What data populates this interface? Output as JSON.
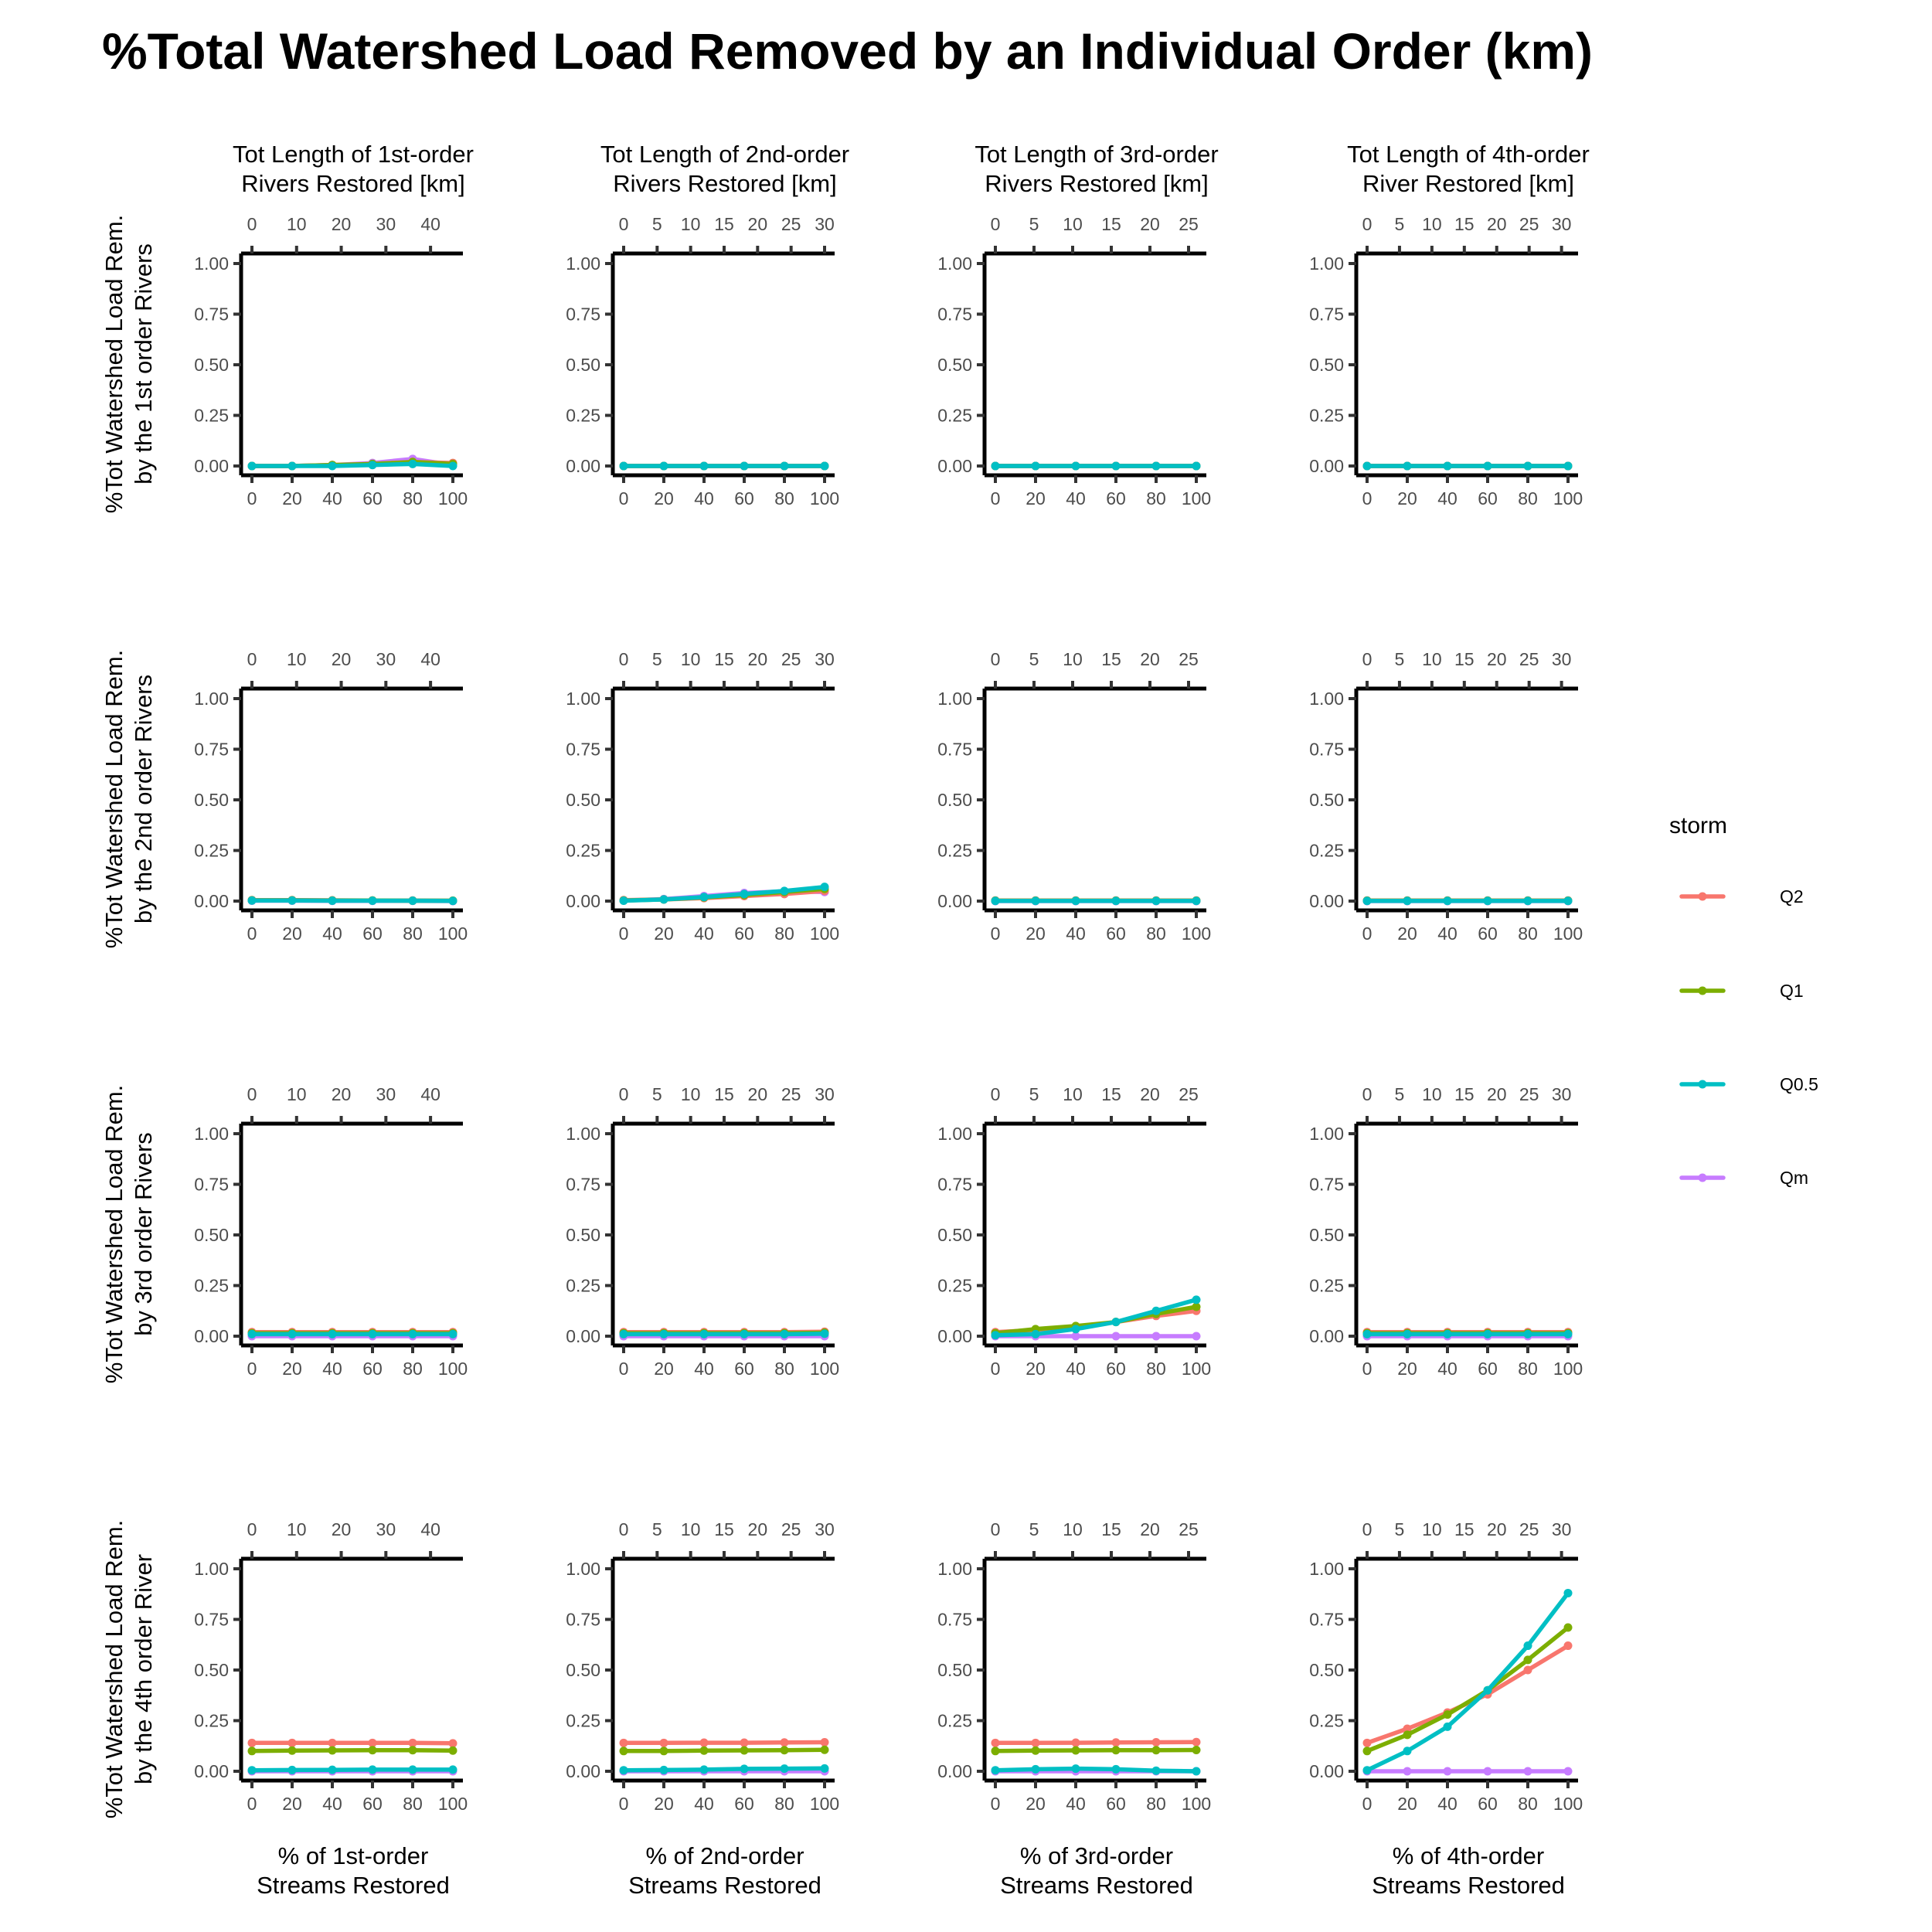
{
  "figure": {
    "title": "%Total Watershed Load Removed by an Individual Order (km)"
  },
  "chart_data": {
    "type": "line",
    "title": "%Total Watershed Load Removed by an Individual Order (km)",
    "grid": false,
    "legend_position": "right",
    "legend": {
      "title": "storm",
      "entries": [
        {
          "name": "Q2",
          "color": "#F8766D"
        },
        {
          "name": "Q1",
          "color": "#7CAE00"
        },
        {
          "name": "Q0.5",
          "color": "#00BFC4"
        },
        {
          "name": "Qm",
          "color": "#C77CFF"
        }
      ]
    },
    "x": [
      0,
      20,
      40,
      60,
      80,
      100
    ],
    "x_ticks": [
      "0",
      "20",
      "40",
      "60",
      "80",
      "100"
    ],
    "xlim": [
      0,
      100
    ],
    "y_ticks": [
      "0.00",
      "0.25",
      "0.50",
      "0.75",
      "1.00"
    ],
    "ylim": [
      0,
      1
    ],
    "columns": [
      {
        "top_label": [
          "Tot Length of 1st-order",
          "Rivers Restored [km]"
        ],
        "bottom_label": [
          "% of 1st-order",
          "Streams Restored"
        ],
        "top_max_km": 45,
        "top_ticks": [
          0,
          10,
          20,
          30,
          40
        ]
      },
      {
        "top_label": [
          "Tot Length of 2nd-order",
          "Rivers Restored [km]"
        ],
        "bottom_label": [
          "% of 2nd-order",
          "Streams Restored"
        ],
        "top_max_km": 30,
        "top_ticks": [
          0,
          5,
          10,
          15,
          20,
          25,
          30
        ]
      },
      {
        "top_label": [
          "Tot Length of 3rd-order",
          "Rivers Restored [km]"
        ],
        "bottom_label": [
          "% of 3rd-order",
          "Streams Restored"
        ],
        "top_max_km": 26,
        "top_ticks": [
          0,
          5,
          10,
          15,
          20,
          25
        ]
      },
      {
        "top_label": [
          "Tot Length of 4th-order",
          "River Restored [km]"
        ],
        "bottom_label": [
          "% of 4th-order",
          "Streams Restored"
        ],
        "top_max_km": 31,
        "top_ticks": [
          0,
          5,
          10,
          15,
          20,
          25,
          30
        ]
      }
    ],
    "rows": [
      {
        "ylabel": [
          "%Tot Watershed Load Rem.",
          "by the 1st order Rivers"
        ]
      },
      {
        "ylabel": [
          "%Tot Watershed Load Rem.",
          "by the 2nd order Rivers"
        ]
      },
      {
        "ylabel": [
          "%Tot Watershed Load Rem.",
          "by 3rd order Rivers"
        ]
      },
      {
        "ylabel": [
          "%Tot Watershed Load Rem.",
          "by the 4th order River"
        ]
      }
    ],
    "panels": [
      [
        {
          "Q2": [
            0,
            0,
            0.005,
            0.01,
            0.02,
            0.015
          ],
          "Q1": [
            0,
            0,
            0.005,
            0.01,
            0.02,
            0.01
          ],
          "Q0.5": [
            0,
            0,
            0,
            0.005,
            0.01,
            0
          ],
          "Qm": [
            0,
            0,
            0.005,
            0.015,
            0.035,
            0.005
          ]
        },
        {
          "Q2": [
            0,
            0,
            0,
            0,
            0,
            0
          ],
          "Q1": [
            0,
            0,
            0,
            0,
            0,
            0
          ],
          "Q0.5": [
            0,
            0,
            0,
            0,
            0,
            0
          ],
          "Qm": [
            0,
            0,
            0,
            0,
            0,
            0
          ]
        },
        {
          "Q2": [
            0,
            0,
            0,
            0,
            0,
            0
          ],
          "Q1": [
            0,
            0,
            0,
            0,
            0,
            0
          ],
          "Q0.5": [
            0,
            0,
            0,
            0,
            0,
            0
          ],
          "Qm": [
            0,
            0,
            0,
            0,
            0,
            0
          ]
        },
        {
          "Q2": [
            0,
            0,
            0,
            0,
            0,
            0
          ],
          "Q1": [
            0,
            0,
            0,
            0,
            0,
            0
          ],
          "Q0.5": [
            0,
            0,
            0,
            0,
            0,
            0
          ],
          "Qm": [
            0,
            0,
            0,
            0,
            0,
            0
          ]
        }
      ],
      [
        {
          "Q2": [
            0.005,
            0.005,
            0.004,
            0.003,
            0.003,
            0.002
          ],
          "Q1": [
            0.004,
            0.004,
            0.003,
            0.003,
            0.002,
            0.002
          ],
          "Q0.5": [
            0.003,
            0.003,
            0.002,
            0.002,
            0.002,
            0.001
          ],
          "Qm": [
            0.002,
            0.002,
            0.001,
            0.001,
            0.001,
            0
          ]
        },
        {
          "Q2": [
            0.005,
            0.008,
            0.015,
            0.025,
            0.035,
            0.05
          ],
          "Q1": [
            0.003,
            0.008,
            0.018,
            0.03,
            0.045,
            0.06
          ],
          "Q0.5": [
            0.002,
            0.008,
            0.02,
            0.035,
            0.05,
            0.07
          ],
          "Qm": [
            0.003,
            0.01,
            0.025,
            0.04,
            0.048,
            0.045
          ]
        },
        {
          "Q2": [
            0.003,
            0.003,
            0.003,
            0.003,
            0.003,
            0.003
          ],
          "Q1": [
            0.002,
            0.002,
            0.002,
            0.002,
            0.002,
            0.002
          ],
          "Q0.5": [
            0.001,
            0.001,
            0.001,
            0.001,
            0.001,
            0.001
          ],
          "Qm": [
            0,
            0,
            0,
            0,
            0,
            0
          ]
        },
        {
          "Q2": [
            0.003,
            0.003,
            0.003,
            0.003,
            0.003,
            0.003
          ],
          "Q1": [
            0.002,
            0.002,
            0.002,
            0.002,
            0.002,
            0.002
          ],
          "Q0.5": [
            0.001,
            0.001,
            0.001,
            0.001,
            0.001,
            0.001
          ],
          "Qm": [
            0,
            0,
            0,
            0,
            0,
            0
          ]
        }
      ],
      [
        {
          "Q2": [
            0.02,
            0.02,
            0.02,
            0.02,
            0.02,
            0.02
          ],
          "Q1": [
            0.015,
            0.015,
            0.015,
            0.015,
            0.015,
            0.015
          ],
          "Q0.5": [
            0.01,
            0.01,
            0.01,
            0.01,
            0.01,
            0.01
          ],
          "Qm": [
            0,
            0,
            0,
            0,
            0,
            0
          ]
        },
        {
          "Q2": [
            0.02,
            0.02,
            0.02,
            0.02,
            0.02,
            0.022
          ],
          "Q1": [
            0.015,
            0.015,
            0.015,
            0.015,
            0.015,
            0.017
          ],
          "Q0.5": [
            0.01,
            0.01,
            0.01,
            0.01,
            0.01,
            0.012
          ],
          "Qm": [
            0,
            0,
            0,
            0,
            0,
            0
          ]
        },
        {
          "Q2": [
            0.02,
            0.03,
            0.045,
            0.07,
            0.1,
            0.125
          ],
          "Q1": [
            0.015,
            0.035,
            0.05,
            0.07,
            0.11,
            0.145
          ],
          "Q0.5": [
            0.005,
            0.01,
            0.035,
            0.07,
            0.125,
            0.18
          ],
          "Qm": [
            0,
            0,
            0,
            0,
            0,
            0
          ]
        },
        {
          "Q2": [
            0.02,
            0.02,
            0.02,
            0.02,
            0.02,
            0.02
          ],
          "Q1": [
            0.015,
            0.015,
            0.015,
            0.015,
            0.015,
            0.015
          ],
          "Q0.5": [
            0.01,
            0.01,
            0.01,
            0.01,
            0.01,
            0.01
          ],
          "Qm": [
            0,
            0,
            0,
            0,
            0,
            0
          ]
        }
      ],
      [
        {
          "Q2": [
            0.14,
            0.14,
            0.14,
            0.14,
            0.14,
            0.138
          ],
          "Q1": [
            0.1,
            0.102,
            0.103,
            0.104,
            0.104,
            0.102
          ],
          "Q0.5": [
            0.005,
            0.006,
            0.007,
            0.008,
            0.008,
            0.008
          ],
          "Qm": [
            0,
            0,
            0,
            0,
            0,
            0
          ]
        },
        {
          "Q2": [
            0.14,
            0.14,
            0.141,
            0.141,
            0.142,
            0.143
          ],
          "Q1": [
            0.1,
            0.1,
            0.102,
            0.103,
            0.104,
            0.106
          ],
          "Q0.5": [
            0.005,
            0.006,
            0.008,
            0.012,
            0.013,
            0.014
          ],
          "Qm": [
            0,
            0,
            0,
            0,
            0,
            0
          ]
        },
        {
          "Q2": [
            0.14,
            0.14,
            0.141,
            0.142,
            0.143,
            0.144
          ],
          "Q1": [
            0.1,
            0.102,
            0.103,
            0.104,
            0.104,
            0.105
          ],
          "Q0.5": [
            0.005,
            0.01,
            0.013,
            0.01,
            0.003,
            0
          ],
          "Qm": [
            0,
            0,
            0,
            0,
            0,
            0
          ]
        },
        {
          "Q2": [
            0.14,
            0.21,
            0.29,
            0.38,
            0.5,
            0.62
          ],
          "Q1": [
            0.1,
            0.18,
            0.28,
            0.4,
            0.55,
            0.71
          ],
          "Q0.5": [
            0.005,
            0.1,
            0.22,
            0.4,
            0.62,
            0.88
          ],
          "Qm": [
            0,
            0,
            0,
            0,
            0,
            0
          ]
        }
      ]
    ]
  }
}
